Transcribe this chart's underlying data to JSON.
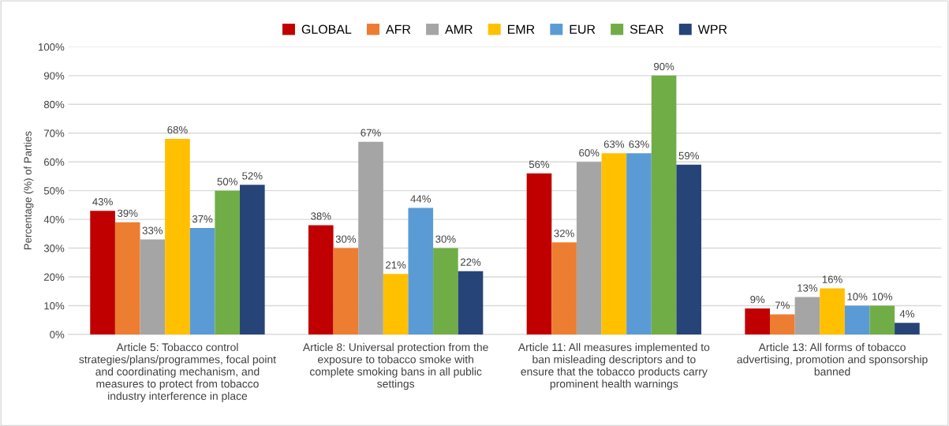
{
  "chart_data": {
    "type": "bar",
    "ylabel": "Percentage (%) of Parties",
    "categories": [
      "Article 5: Tobacco control strategies/plans/programmes, focal point and coordinating mechanism, and measures to protect from tobacco industry interference in place",
      "Article 8: Universal protection from the exposure to tobacco smoke with complete smoking bans in all public settings",
      "Article 11: All measures implemented to ban misleading descriptors and to ensure that the tobacco products carry prominent health warnings",
      "Article 13: All forms of tobacco advertising, promotion and sponsorship banned"
    ],
    "series": [
      {
        "name": "GLOBAL",
        "color": "#c00000",
        "values": [
          43,
          38,
          56,
          9
        ],
        "value_labels": [
          "43%",
          "38%",
          "56%",
          "9%"
        ]
      },
      {
        "name": "AFR",
        "color": "#ed7d31",
        "values": [
          39,
          30,
          32,
          7
        ],
        "value_labels": [
          "39%",
          "30%",
          "32%",
          "7%"
        ]
      },
      {
        "name": "AMR",
        "color": "#a5a5a5",
        "values": [
          33,
          67,
          60,
          13
        ],
        "value_labels": [
          "33%",
          "67%",
          "60%",
          "13%"
        ]
      },
      {
        "name": "EMR",
        "color": "#ffc000",
        "values": [
          68,
          21,
          63,
          16
        ],
        "value_labels": [
          "68%",
          "21%",
          "63%",
          "16%"
        ]
      },
      {
        "name": "EUR",
        "color": "#5b9bd5",
        "values": [
          37,
          44,
          63,
          10
        ],
        "value_labels": [
          "37%",
          "44%",
          "63%",
          "10%"
        ]
      },
      {
        "name": "SEAR",
        "color": "#70ad47",
        "values": [
          50,
          30,
          90,
          10
        ],
        "value_labels": [
          "50%",
          "30%",
          "90%",
          "10%"
        ]
      },
      {
        "name": "WPR",
        "color": "#264478",
        "values": [
          52,
          22,
          59,
          4
        ],
        "value_labels": [
          "52%",
          "22%",
          "59%",
          "4%"
        ]
      }
    ],
    "ylim": [
      0,
      100
    ],
    "yticks": [
      {
        "value": 0,
        "label": "0%"
      },
      {
        "value": 10,
        "label": "10%"
      },
      {
        "value": 20,
        "label": "20%"
      },
      {
        "value": 30,
        "label": "30%"
      },
      {
        "value": 40,
        "label": "40%"
      },
      {
        "value": 50,
        "label": "50%"
      },
      {
        "value": 60,
        "label": "60%"
      },
      {
        "value": 70,
        "label": "70%"
      },
      {
        "value": 80,
        "label": "80%"
      },
      {
        "value": 90,
        "label": "90%"
      },
      {
        "value": 100,
        "label": "100%"
      }
    ],
    "grid": "y",
    "legend": "top"
  }
}
